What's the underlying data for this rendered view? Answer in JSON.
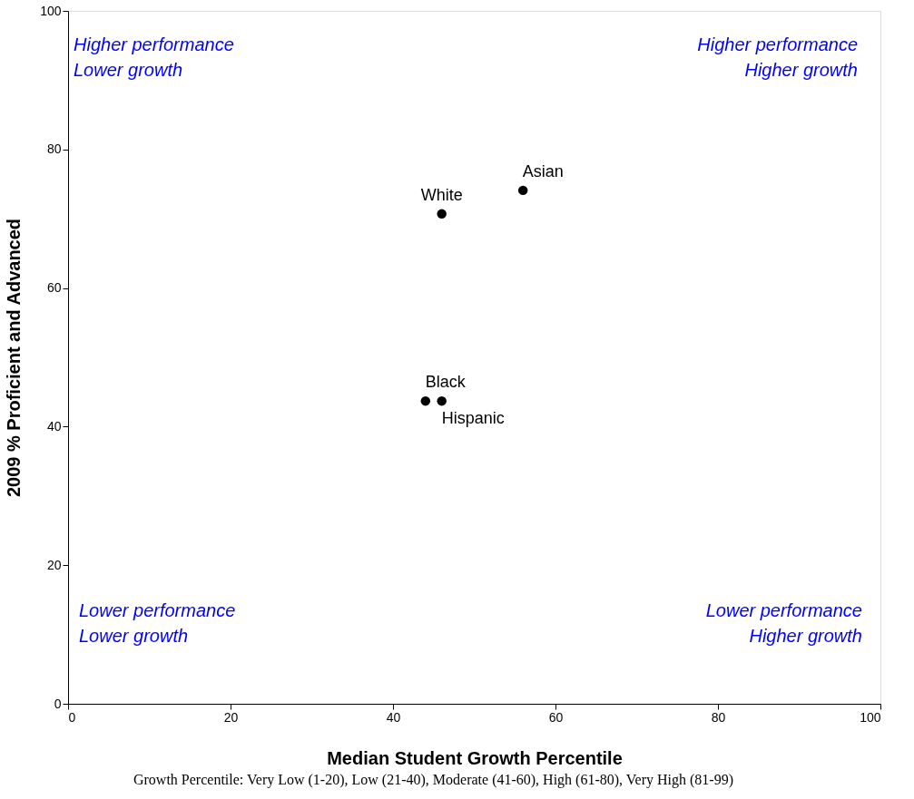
{
  "chart_data": {
    "type": "scatter",
    "xlabel": "Median Student Growth Percentile",
    "ylabel": "2009 % Proficient and Advanced",
    "xlim": [
      0,
      100
    ],
    "ylim": [
      0,
      100
    ],
    "xticks": [
      0,
      20,
      40,
      60,
      80,
      100
    ],
    "yticks": [
      0,
      20,
      40,
      60,
      80,
      100
    ],
    "grid": false,
    "marker": "circle",
    "series": [
      {
        "name": "White",
        "color": "#000000",
        "x": [
          46
        ],
        "values": [
          70.7
        ]
      },
      {
        "name": "Asian",
        "color": "#000000",
        "x": [
          56
        ],
        "values": [
          74.1
        ]
      },
      {
        "name": "Black",
        "color": "#000000",
        "x": [
          44
        ],
        "values": [
          43.7
        ]
      },
      {
        "name": "Hispanic",
        "color": "#000000",
        "x": [
          46
        ],
        "values": [
          43.7
        ]
      }
    ],
    "annotations": [
      "Higher performance\nLower growth",
      "Higher performance\nHigher growth",
      "Lower performance\nLower growth",
      "Lower performance\nHigher growth",
      "Growth Percentile: Very Low (1-20), Low (21-40), Moderate (41-60), High (61-80), Very High (81-99)"
    ]
  }
}
